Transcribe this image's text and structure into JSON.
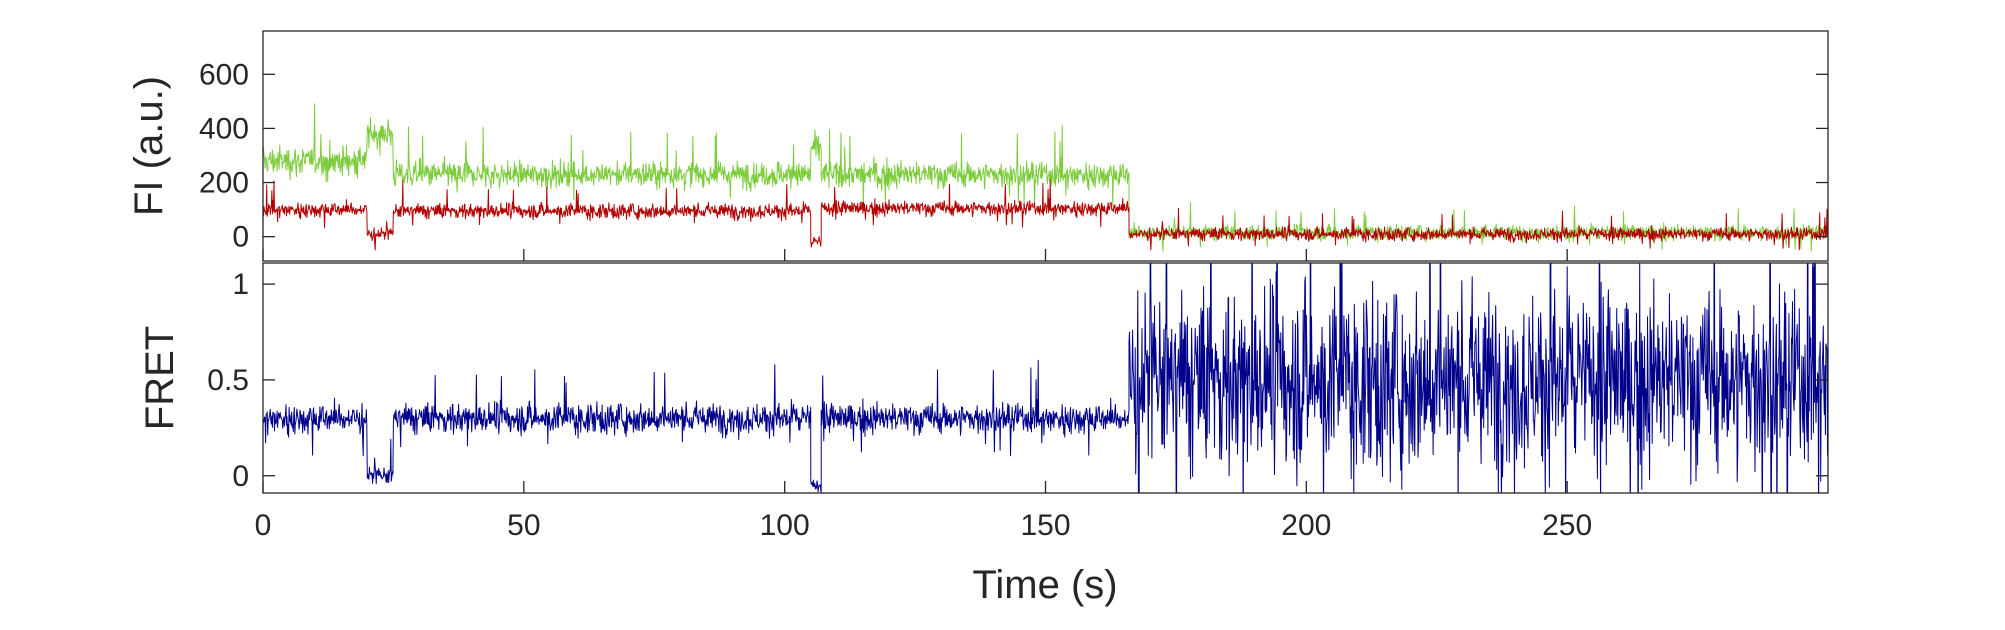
{
  "chart_data": [
    {
      "type": "line",
      "panel": "top",
      "ylabel": "FI (a.u.)",
      "xlim": [
        0,
        300
      ],
      "ylim": [
        -90,
        760
      ],
      "yticks": [
        0,
        200,
        400,
        600
      ],
      "ytick_labels": [
        "0",
        "200",
        "400",
        "600"
      ],
      "grid": false,
      "series": [
        {
          "color": "#7ccc3c",
          "segments": [
            {
              "t_start": 0,
              "t_end": 20,
              "mean": 280,
              "noise": 70
            },
            {
              "t_start": 20,
              "t_end": 25,
              "mean": 380,
              "noise": 70
            },
            {
              "t_start": 25,
              "t_end": 105,
              "mean": 230,
              "noise": 60
            },
            {
              "t_start": 105,
              "t_end": 107,
              "mean": 330,
              "noise": 60
            },
            {
              "t_start": 107,
              "t_end": 166,
              "mean": 230,
              "noise": 60
            },
            {
              "t_start": 166,
              "t_end": 300,
              "mean": 15,
              "noise": 35
            }
          ]
        },
        {
          "color": "#b20000",
          "segments": [
            {
              "t_start": 0,
              "t_end": 20,
              "mean": 100,
              "noise": 35
            },
            {
              "t_start": 20,
              "t_end": 25,
              "mean": 10,
              "noise": 30
            },
            {
              "t_start": 25,
              "t_end": 105,
              "mean": 95,
              "noise": 35
            },
            {
              "t_start": 105,
              "t_end": 107,
              "mean": -20,
              "noise": 30
            },
            {
              "t_start": 107,
              "t_end": 166,
              "mean": 105,
              "noise": 35
            },
            {
              "t_start": 166,
              "t_end": 300,
              "mean": 10,
              "noise": 30
            }
          ]
        }
      ]
    },
    {
      "type": "line",
      "panel": "bottom",
      "xlabel": "Time (s)",
      "ylabel": "FRET",
      "xlim": [
        0,
        300
      ],
      "ylim": [
        -0.09,
        1.11
      ],
      "xticks": [
        0,
        50,
        100,
        150,
        200,
        250
      ],
      "xtick_labels": [
        "0",
        "50",
        "100",
        "150",
        "200",
        "250"
      ],
      "yticks": [
        0,
        0.5,
        1
      ],
      "ytick_labels": [
        "0",
        "0.5",
        "1"
      ],
      "grid": false,
      "series": [
        {
          "color": "#00008b",
          "segments": [
            {
              "t_start": 0,
              "t_end": 20,
              "mean": 0.3,
              "noise": 0.1
            },
            {
              "t_start": 20,
              "t_end": 25,
              "mean": 0.0,
              "noise": 0.06
            },
            {
              "t_start": 25,
              "t_end": 105,
              "mean": 0.3,
              "noise": 0.1
            },
            {
              "t_start": 105,
              "t_end": 107,
              "mean": -0.05,
              "noise": 0.05
            },
            {
              "t_start": 107,
              "t_end": 166,
              "mean": 0.3,
              "noise": 0.1
            },
            {
              "t_start": 166,
              "t_end": 300,
              "mean": 0.5,
              "noise": 0.6
            }
          ]
        }
      ]
    }
  ]
}
